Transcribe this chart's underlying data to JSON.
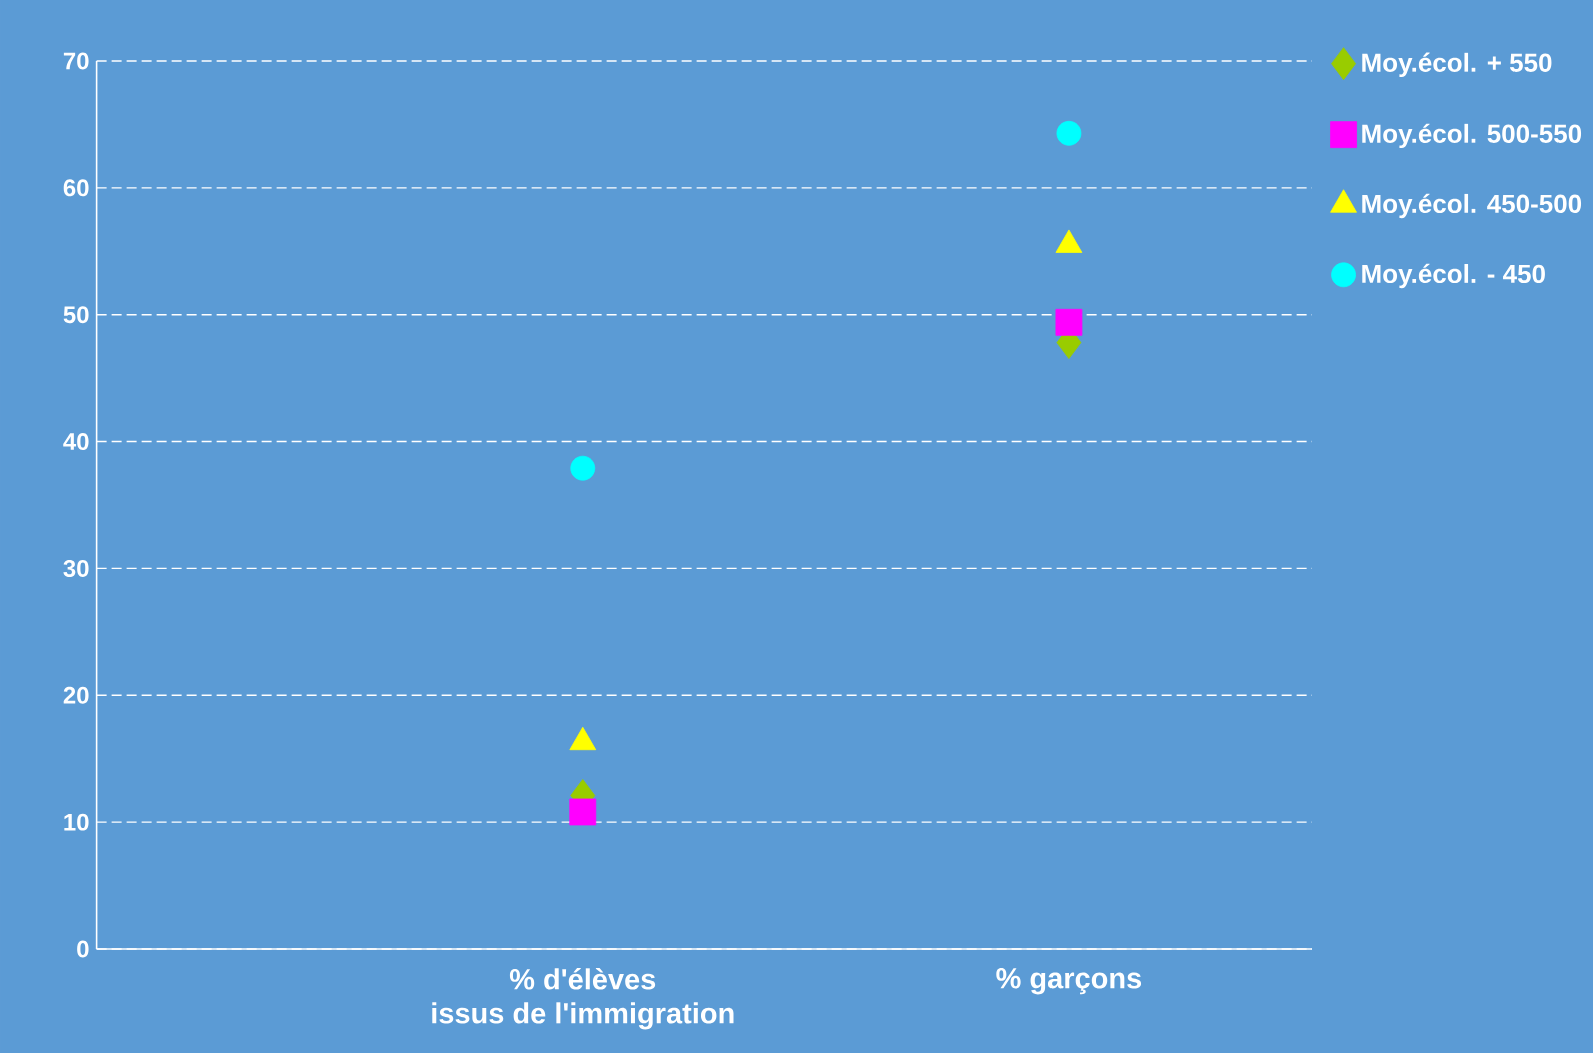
{
  "chart_data": {
    "type": "scatter",
    "categories": [
      "% d'élèves\nissus de l'immigration",
      "%  garçons"
    ],
    "series": [
      {
        "name": "Moy.écol. + 550",
        "color": "#99cc00",
        "marker": "diamond",
        "values": [
          12.1,
          47.8
        ]
      },
      {
        "name": "Moy.écol. 500-550",
        "color": "#ff00ff",
        "marker": "square",
        "values": [
          10.8,
          49.4
        ]
      },
      {
        "name": "Moy.écol. 450-500",
        "color": "#ffff00",
        "marker": "triangle",
        "values": [
          16.3,
          55.5
        ]
      },
      {
        "name": "Moy.écol. - 450",
        "color": "#00ffff",
        "marker": "circle",
        "values": [
          37.9,
          64.3
        ]
      }
    ],
    "ylim": [
      0,
      70
    ],
    "yticks": [
      0,
      10,
      20,
      30,
      40,
      50,
      60,
      70
    ],
    "grid": "y",
    "legend": "top right"
  }
}
